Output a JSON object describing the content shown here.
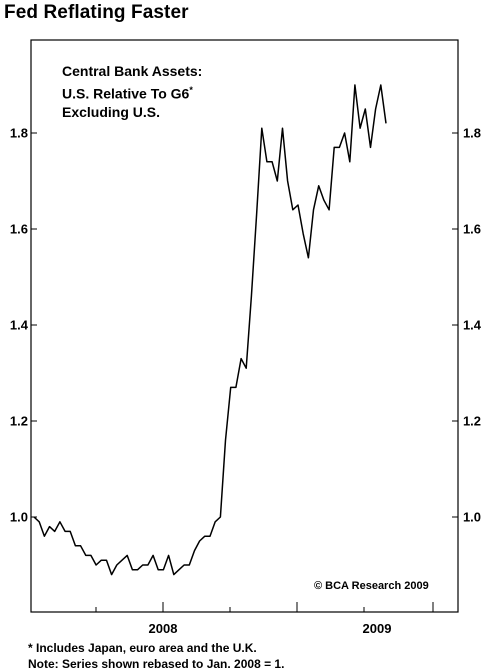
{
  "chart_data": {
    "type": "line",
    "title": "Fed Reflating Faster",
    "legend_lines": [
      "Central Bank Assets:",
      "U.S. Relative To G6",
      "Excluding U.S."
    ],
    "legend_marker": "*",
    "copyright": "© BCA Research 2009",
    "footnotes": [
      "* Includes Japan, euro area and the U.K.",
      "Note: Series shown rebased to Jan. 2008 = 1."
    ],
    "ylim": [
      0.8,
      2.0
    ],
    "y_ticks": [
      1.0,
      1.2,
      1.4,
      1.6,
      1.8
    ],
    "y_tick_labels": [
      "1.0",
      "1.2",
      "1.4",
      "1.6",
      "1.8"
    ],
    "x_tick_labels": [
      "2008",
      "2009"
    ],
    "grid": false,
    "y_axis_sides": [
      "left",
      "right"
    ],
    "series": [
      {
        "values": [
          1.0,
          0.99,
          0.96,
          0.98,
          0.97,
          0.99,
          0.97,
          0.97,
          0.94,
          0.94,
          0.92,
          0.92,
          0.9,
          0.91,
          0.91,
          0.88,
          0.9,
          0.91,
          0.92,
          0.89,
          0.89,
          0.9,
          0.9,
          0.92,
          0.89,
          0.89,
          0.92,
          0.88,
          0.89,
          0.9,
          0.9,
          0.93,
          0.95,
          0.96,
          0.96,
          0.99,
          1.0,
          1.16,
          1.27,
          1.27,
          1.33,
          1.31,
          1.46,
          1.63,
          1.81,
          1.74,
          1.74,
          1.7,
          1.81,
          1.7,
          1.64,
          1.65,
          1.59,
          1.54,
          1.64,
          1.69,
          1.66,
          1.64,
          1.77,
          1.77,
          1.8,
          1.74,
          1.9,
          1.81,
          1.85,
          1.77,
          1.85,
          1.9,
          1.82
        ]
      }
    ]
  }
}
